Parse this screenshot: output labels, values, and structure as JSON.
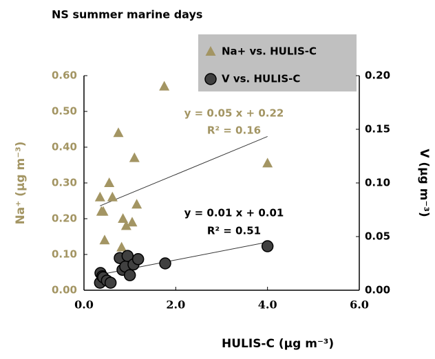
{
  "chart_data": {
    "type": "scatter",
    "title": "NS summer marine days",
    "xlabel": "HULIS-C  (µg m⁻³)",
    "ylabel": "Na⁺ (µg m⁻³)",
    "y2label": "V (µg m⁻³)",
    "xlim": [
      0,
      6
    ],
    "xticks": [
      {
        "value": 0,
        "label": "0.0"
      },
      {
        "value": 2,
        "label": "2.0"
      },
      {
        "value": 4,
        "label": "4.0"
      },
      {
        "value": 6,
        "label": "6.0"
      }
    ],
    "ylim": [
      0,
      0.6
    ],
    "yticks": [
      {
        "value": 0,
        "label": "0.00"
      },
      {
        "value": 0.1,
        "label": "0.10"
      },
      {
        "value": 0.2,
        "label": "0.20"
      },
      {
        "value": 0.3,
        "label": "0.30"
      },
      {
        "value": 0.4,
        "label": "0.40"
      },
      {
        "value": 0.5,
        "label": "0.50"
      },
      {
        "value": 0.6,
        "label": "0.60"
      }
    ],
    "y2lim": [
      0,
      0.2
    ],
    "y2ticks": [
      {
        "value": 0,
        "label": "0.00"
      },
      {
        "value": 0.05,
        "label": "0.05"
      },
      {
        "value": 0.1,
        "label": "0.10"
      },
      {
        "value": 0.15,
        "label": "0.15"
      },
      {
        "value": 0.2,
        "label": "0.20"
      }
    ],
    "trendline": true,
    "series": [
      {
        "name": "Na+ vs. HULIS-C",
        "color": "#a39563",
        "marker": "triangle",
        "axis": "y",
        "x": [
          0.35,
          0.38,
          0.42,
          0.45,
          0.55,
          0.62,
          0.75,
          0.82,
          0.85,
          0.92,
          1.05,
          1.1,
          1.15,
          1.75,
          4.0
        ],
        "values": [
          0.26,
          0.22,
          0.22,
          0.14,
          0.3,
          0.26,
          0.44,
          0.12,
          0.2,
          0.18,
          0.19,
          0.37,
          0.24,
          0.57,
          0.355
        ],
        "annotation": [
          "y = 0.05 x + 0.22",
          "R² = 0.16"
        ]
      },
      {
        "name": "V vs. HULIS-C",
        "color": "#404040",
        "marker": "circle",
        "axis": "y2",
        "x": [
          0.35,
          0.36,
          0.4,
          0.42,
          0.5,
          0.58,
          0.78,
          0.84,
          0.9,
          0.95,
          1.0,
          1.08,
          1.18,
          1.77,
          4.0
        ],
        "values": [
          0.007,
          0.016,
          0.013,
          0.012,
          0.009,
          0.007,
          0.03,
          0.019,
          0.022,
          0.032,
          0.014,
          0.024,
          0.029,
          0.025,
          0.041
        ],
        "annotation": [
          "y = 0.01 x + 0.01",
          "R² = 0.51"
        ]
      }
    ]
  }
}
